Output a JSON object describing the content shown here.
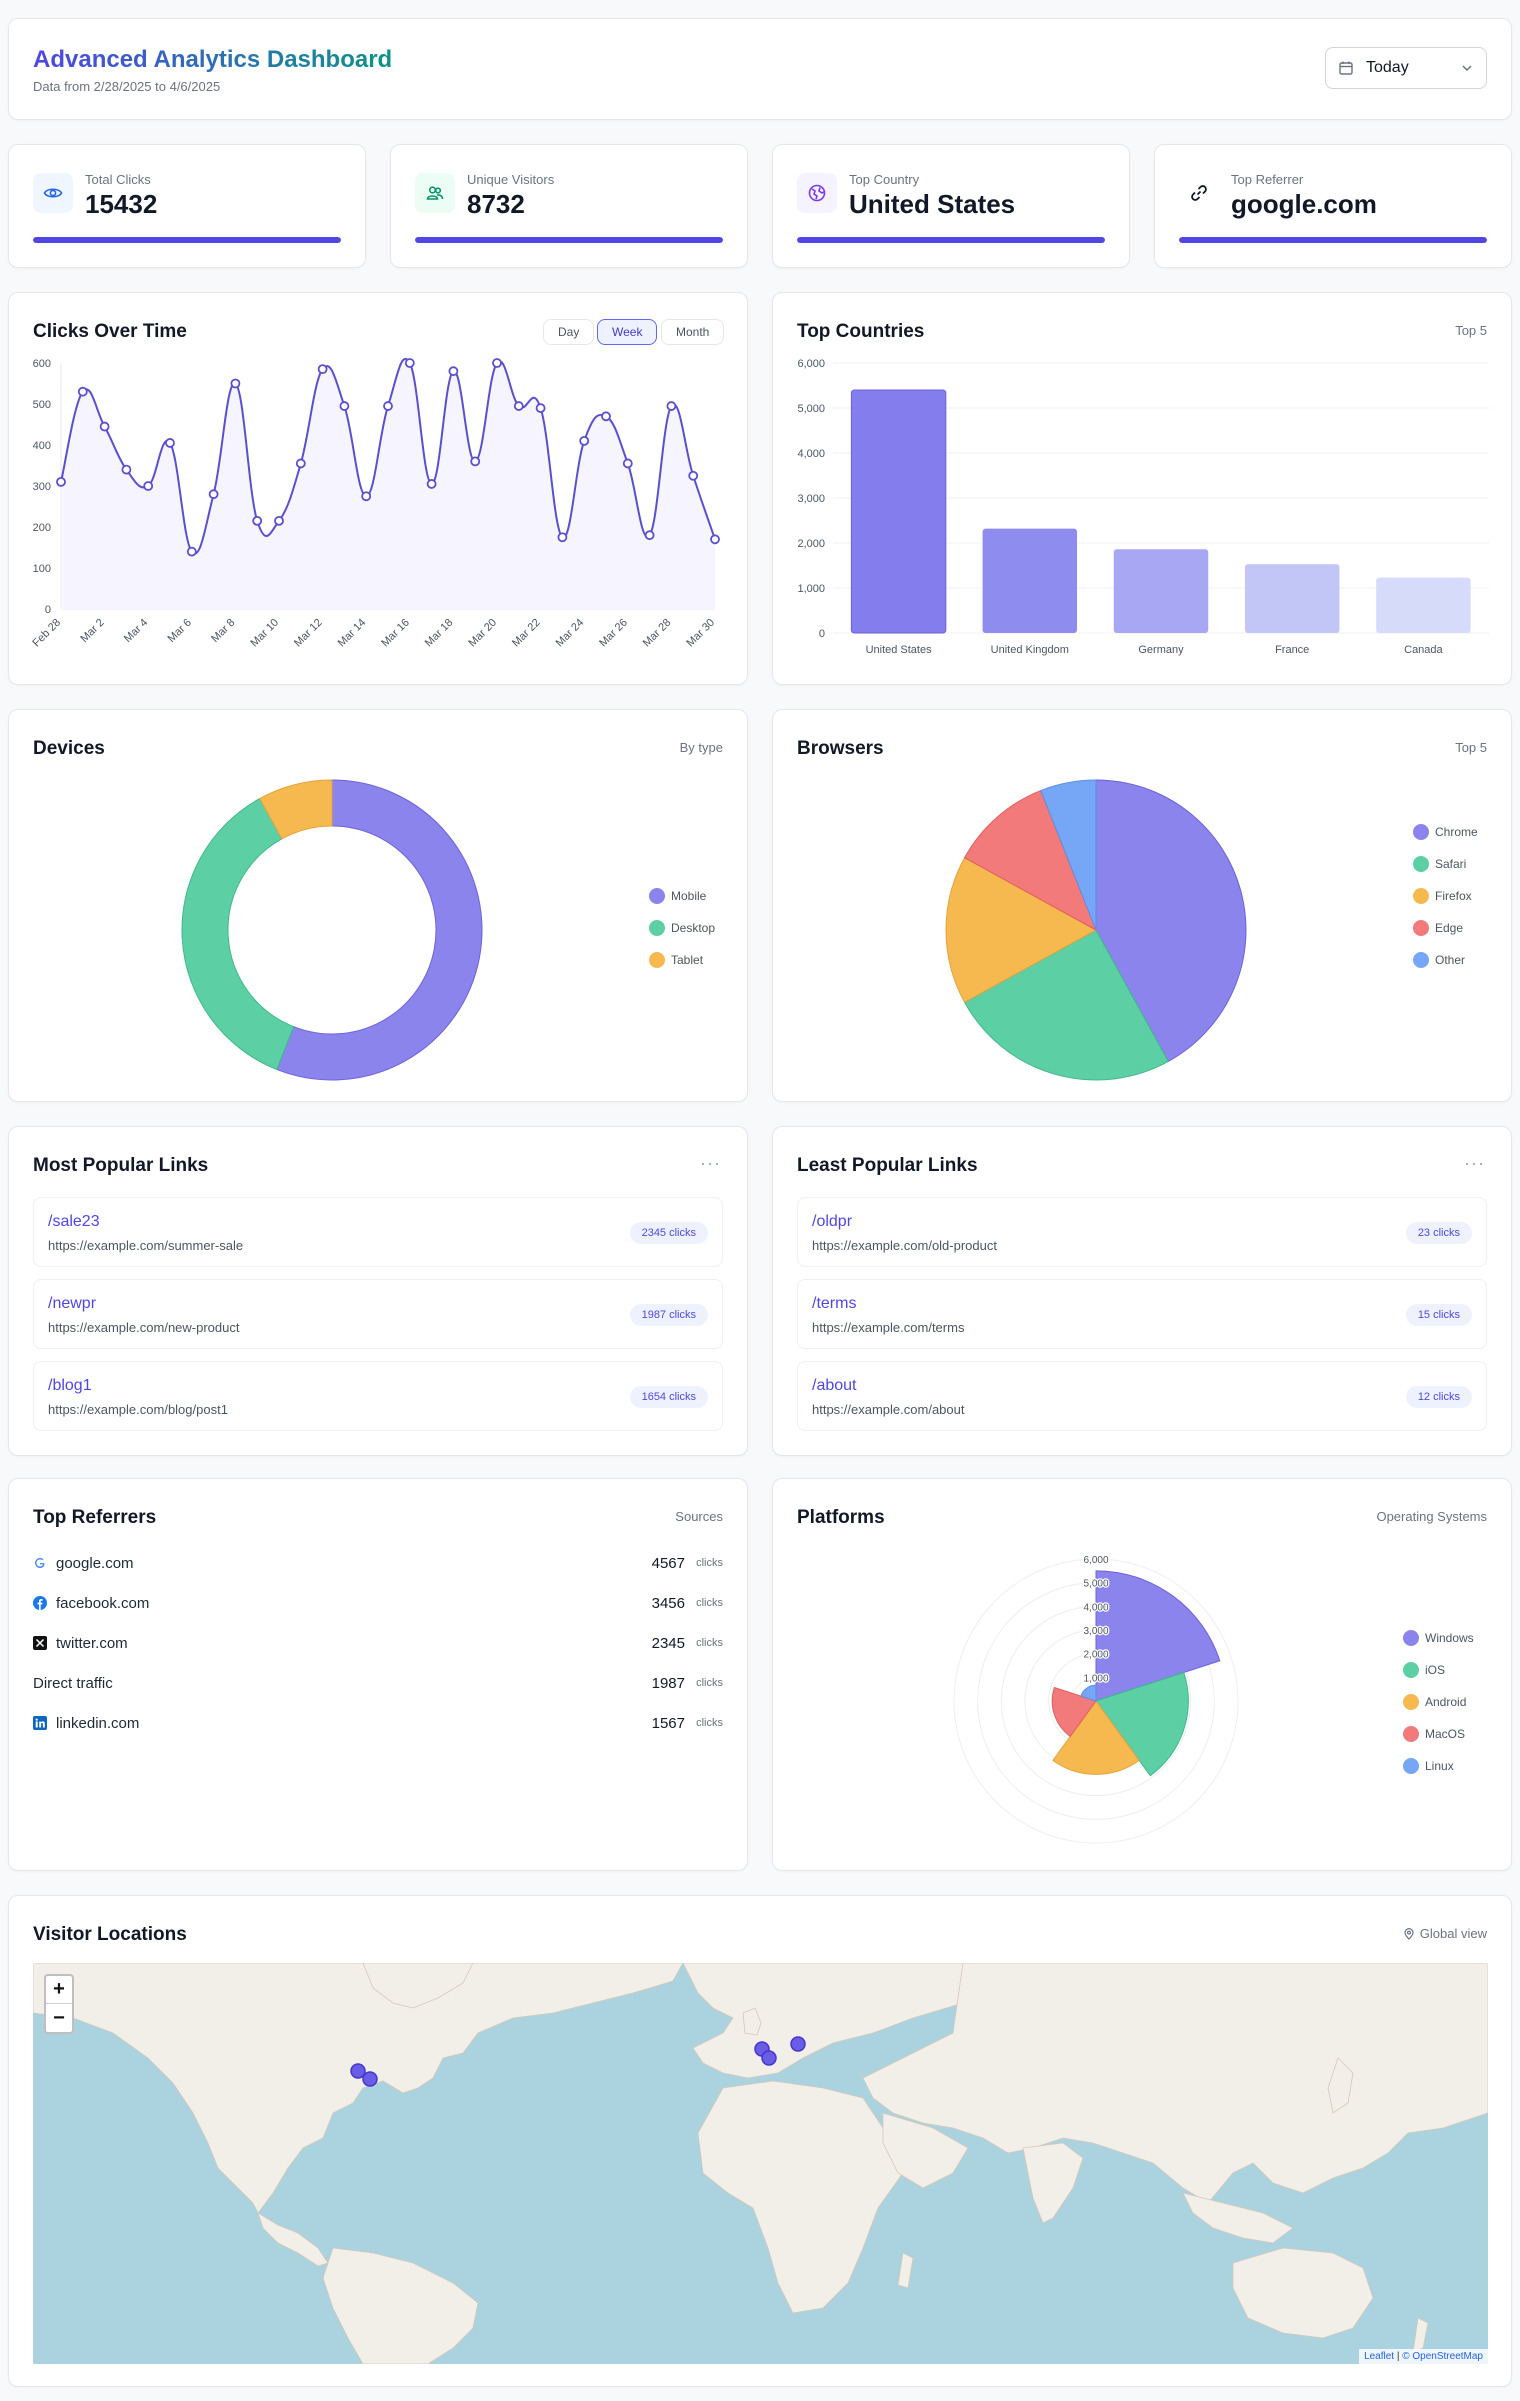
{
  "header": {
    "title": "Advanced Analytics Dashboard",
    "date_range": "Data from 2/28/2025 to 4/6/2025",
    "period_select": "Today"
  },
  "stats": [
    {
      "label": "Total Clicks",
      "value": "15432",
      "icon": "eye-icon",
      "color": "#2563eb"
    },
    {
      "label": "Unique Visitors",
      "value": "8732",
      "icon": "users-icon",
      "color": "#059669"
    },
    {
      "label": "Top Country",
      "value": "United States",
      "icon": "globe-icon",
      "color": "#7c3aed"
    },
    {
      "label": "Top Referrer",
      "value": "google.com",
      "icon": "link-icon",
      "color": "#111827"
    }
  ],
  "clicks_card": {
    "title": "Clicks Over Time",
    "ranges": [
      "Day",
      "Week",
      "Month"
    ],
    "active_range": "Week"
  },
  "countries_card": {
    "title": "Top Countries",
    "subtitle": "Top 5"
  },
  "devices_card": {
    "title": "Devices",
    "subtitle": "By type"
  },
  "browsers_card": {
    "title": "Browsers",
    "subtitle": "Top 5"
  },
  "popular_links": {
    "title": "Most Popular Links",
    "items": [
      {
        "short": "/sale23",
        "url": "https://example.com/summer-sale",
        "clicks": "2345 clicks"
      },
      {
        "short": "/newpr",
        "url": "https://example.com/new-product",
        "clicks": "1987 clicks"
      },
      {
        "short": "/blog1",
        "url": "https://example.com/blog/post1",
        "clicks": "1654 clicks"
      }
    ]
  },
  "least_links": {
    "title": "Least Popular Links",
    "items": [
      {
        "short": "/oldpr",
        "url": "https://example.com/old-product",
        "clicks": "23 clicks"
      },
      {
        "short": "/terms",
        "url": "https://example.com/terms",
        "clicks": "15 clicks"
      },
      {
        "short": "/about",
        "url": "https://example.com/about",
        "clicks": "12 clicks"
      }
    ]
  },
  "referrers": {
    "title": "Top Referrers",
    "subtitle": "Sources",
    "unit": "clicks",
    "items": [
      {
        "name": "google.com",
        "value": "4567",
        "icon": "google-icon"
      },
      {
        "name": "facebook.com",
        "value": "3456",
        "icon": "facebook-icon"
      },
      {
        "name": "twitter.com",
        "value": "2345",
        "icon": "x-icon"
      },
      {
        "name": "Direct traffic",
        "value": "1987",
        "icon": ""
      },
      {
        "name": "linkedin.com",
        "value": "1567",
        "icon": "linkedin-icon"
      }
    ]
  },
  "platforms_card": {
    "title": "Platforms",
    "subtitle": "Operating Systems"
  },
  "map_card": {
    "title": "Visitor Locations",
    "subtitle": "Global view",
    "zoom_in": "+",
    "zoom_out": "−",
    "attribution_leaflet": "Leaflet",
    "attribution_osm": "© OpenStreetMap"
  },
  "colors": {
    "primary": "#4f46e5",
    "indigo": "#8b84ec",
    "green": "#5ccfa4",
    "amber": "#f6b94f",
    "red": "#f27a7a",
    "blue": "#76a6f6"
  },
  "chart_data": [
    {
      "type": "line",
      "x": [
        "Feb 28",
        "Mar 1",
        "Mar 2",
        "Mar 3",
        "Mar 4",
        "Mar 5",
        "Mar 6",
        "Mar 7",
        "Mar 8",
        "Mar 9",
        "Mar 10",
        "Mar 11",
        "Mar 12",
        "Mar 13",
        "Mar 14",
        "Mar 15",
        "Mar 16",
        "Mar 17",
        "Mar 18",
        "Mar 19",
        "Mar 20",
        "Mar 21",
        "Mar 22",
        "Mar 23",
        "Mar 24",
        "Mar 25",
        "Mar 26",
        "Mar 27",
        "Mar 28",
        "Mar 29",
        "Mar 30"
      ],
      "tick_labels": [
        "Feb 28",
        "Mar 2",
        "Mar 4",
        "Mar 6",
        "Mar 8",
        "Mar 10",
        "Mar 12",
        "Mar 14",
        "Mar 16",
        "Mar 18",
        "Mar 20",
        "Mar 22",
        "Mar 24",
        "Mar 26",
        "Mar 28",
        "Mar 30"
      ],
      "values": [
        310,
        530,
        445,
        340,
        300,
        405,
        140,
        280,
        550,
        215,
        215,
        355,
        585,
        495,
        275,
        495,
        600,
        305,
        580,
        360,
        600,
        495,
        490,
        175,
        410,
        470,
        355,
        180,
        495,
        325,
        170
      ],
      "ylim": [
        0,
        600
      ],
      "yticks": [
        0,
        100,
        200,
        300,
        400,
        500,
        600
      ],
      "grid": false
    },
    {
      "type": "bar",
      "categories": [
        "United States",
        "United Kingdom",
        "Germany",
        "France",
        "Canada"
      ],
      "values": [
        5400,
        2320,
        1860,
        1530,
        1230
      ],
      "ylim": [
        0,
        6000
      ],
      "yticks": [
        "0",
        "1,000",
        "2,000",
        "3,000",
        "4,000",
        "5,000",
        "6,000"
      ],
      "grid": true
    },
    {
      "type": "pie",
      "variant": "doughnut",
      "labels": [
        "Mobile",
        "Desktop",
        "Tablet"
      ],
      "values": [
        56,
        36,
        8
      ],
      "legend": "right"
    },
    {
      "type": "pie",
      "labels": [
        "Chrome",
        "Safari",
        "Firefox",
        "Edge",
        "Other"
      ],
      "values": [
        42,
        25,
        16,
        11,
        6
      ],
      "legend": "right"
    },
    {
      "type": "polar-area",
      "labels": [
        "Windows",
        "iOS",
        "Android",
        "MacOS",
        "Linux"
      ],
      "values": [
        5500,
        3900,
        3100,
        1850,
        670
      ],
      "rticks": [
        "1,000",
        "2,000",
        "3,000",
        "4,000",
        "5,000",
        "6,000"
      ],
      "rmax": 6000,
      "legend": "right"
    }
  ]
}
